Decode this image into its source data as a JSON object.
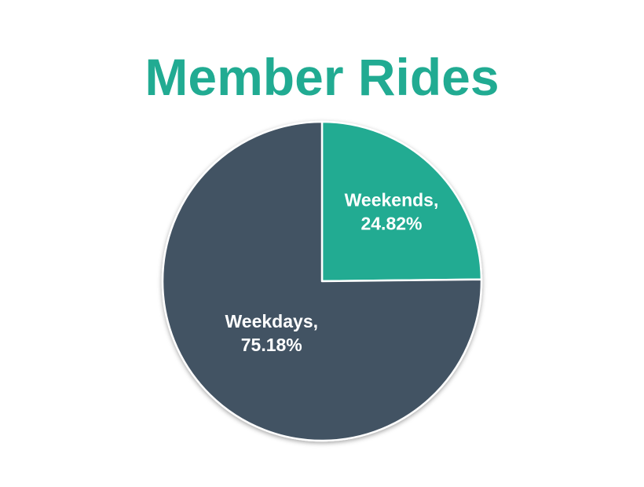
{
  "chart_data": {
    "type": "pie",
    "title": "Member Rides",
    "slices": [
      {
        "label": "Weekends",
        "value": 24.82,
        "display": "24.82%",
        "color": "#21ab92"
      },
      {
        "label": "Weekdays",
        "value": 75.18,
        "display": "75.18%",
        "color": "#425263"
      }
    ],
    "start_angle": "12 o'clock",
    "direction": "clockwise",
    "legend": "none",
    "title_color": "#21ab92",
    "slice_border_color": "#ffffff"
  }
}
